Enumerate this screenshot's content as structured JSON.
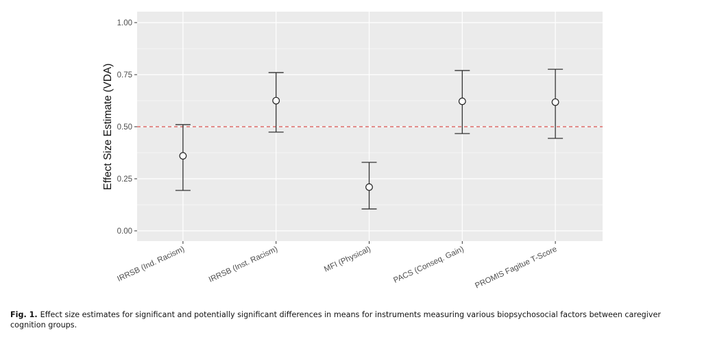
{
  "chart_data": {
    "type": "scatter",
    "subtype": "point-with-error-bars",
    "title": "",
    "xlabel": "",
    "ylabel": "Effect Size Estimate (VDA)",
    "ylim": [
      -0.05,
      1.05
    ],
    "yticks": [
      0.0,
      0.25,
      0.5,
      0.75,
      1.0
    ],
    "ytick_labels": [
      "0.00",
      "0.25",
      "0.50",
      "0.75",
      "1.00"
    ],
    "grid": true,
    "legend": "none",
    "categories": [
      "IRRSB (Ind. Racism)",
      "IRRSB (Inst. Racism)",
      "MFI (Physical)",
      "PACS (Conseq. Gain)",
      "PROMIS Fagitue T-Score"
    ],
    "series": [
      {
        "name": "VDA estimate",
        "values": [
          0.36,
          0.625,
          0.21,
          0.622,
          0.618
        ],
        "lower": [
          0.194,
          0.474,
          0.105,
          0.467,
          0.444
        ],
        "upper": [
          0.51,
          0.76,
          0.329,
          0.77,
          0.776
        ]
      }
    ],
    "reference_line": {
      "y": 0.5,
      "style": "dashed",
      "color": "#d9534f"
    },
    "colors": {
      "panel": "#ebebeb",
      "grid": "#ffffff",
      "errorbar": "#333333",
      "point_fill": "#ffffff",
      "point_stroke": "#222222",
      "tick_text": "#4d4d4d"
    }
  },
  "caption": {
    "label": "Fig. 1.",
    "text": "Effect size estimates for significant and potentially significant differences in means for instruments measuring various biopsychosocial factors between caregiver cognition groups."
  }
}
